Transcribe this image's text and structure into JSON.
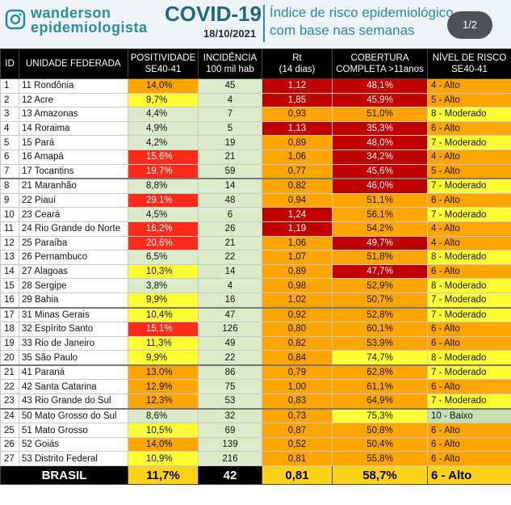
{
  "header": {
    "brand_line1": "wanderson",
    "brand_line2": "epidemiologista",
    "title": "COVID-19",
    "date": "18/10/2021",
    "subtitle_line1": "Índice de risco epidemiológico",
    "subtitle_line2": "com base nas semanas",
    "pager": "1/2",
    "icon": "instagram-icon"
  },
  "colors": {
    "dark_red": "#c00000",
    "red": "#ff2a1a",
    "orange": "#ffa500",
    "yellow": "#ffff33",
    "green": "#c6e0b4",
    "light_green": "#dbeac8",
    "gold": "#ffd21a"
  },
  "table": {
    "headers": {
      "id": "ID",
      "unit": "UNIDADE FEDERADA",
      "pos1": "POSITIVIDADE",
      "pos2": "SE40-41",
      "inc1": "INCIDÊNCIA",
      "inc2": "100 mil hab",
      "rt1": "Rt",
      "rt2": "(14 dias)",
      "cov1": "COBERTURA",
      "cov2": "COMPLETA >11anos",
      "risk1": "NÍVEL DE RISCO",
      "risk2": "SE40-41"
    },
    "rows": [
      {
        "id": "1",
        "unit": "11 Rondônia",
        "pos": "14,0%",
        "inc": "45",
        "rt": "1,12",
        "cov": "48,1%",
        "risk": "4 - Alto"
      },
      {
        "id": "2",
        "unit": "12 Acre",
        "pos": "9,7%",
        "inc": "4",
        "rt": "1,85",
        "cov": "45,9%",
        "risk": "5 - Alto"
      },
      {
        "id": "3",
        "unit": "13 Amazonas",
        "pos": "4,4%",
        "inc": "7",
        "rt": "0,93",
        "cov": "51,0%",
        "risk": "8 - Moderado"
      },
      {
        "id": "4",
        "unit": "14 Roraima",
        "pos": "4,9%",
        "inc": "5",
        "rt": "1,13",
        "cov": "35,3%",
        "risk": "6 - Alto"
      },
      {
        "id": "5",
        "unit": "15 Pará",
        "pos": "4,2%",
        "inc": "19",
        "rt": "0,89",
        "cov": "48,0%",
        "risk": "7 - Moderado"
      },
      {
        "id": "6",
        "unit": "16 Amapá",
        "pos": "15,6%",
        "inc": "21",
        "rt": "1,06",
        "cov": "34,2%",
        "risk": "4 - Alto"
      },
      {
        "id": "7",
        "unit": "17 Tocantins",
        "pos": "19,7%",
        "inc": "59",
        "rt": "0,77",
        "cov": "45,6%",
        "risk": "5 - Alto"
      },
      {
        "id": "8",
        "unit": "21 Maranhão",
        "pos": "8,8%",
        "inc": "14",
        "rt": "0,82",
        "cov": "46,0%",
        "risk": "7 - Moderado"
      },
      {
        "id": "9",
        "unit": "22 Piauí",
        "pos": "29,1%",
        "inc": "48",
        "rt": "0,94",
        "cov": "51,1%",
        "risk": "6 - Alto"
      },
      {
        "id": "10",
        "unit": "23 Ceará",
        "pos": "4,5%",
        "inc": "6",
        "rt": "1,24",
        "cov": "56,1%",
        "risk": "7 - Moderado"
      },
      {
        "id": "11",
        "unit": "24 Rio Grande do Norte",
        "pos": "16,2%",
        "inc": "26",
        "rt": "1,19",
        "cov": "54,2%",
        "risk": "4 - Alto"
      },
      {
        "id": "12",
        "unit": "25 Paraíba",
        "pos": "20,6%",
        "inc": "21",
        "rt": "1,06",
        "cov": "49,7%",
        "risk": "4 - Alto"
      },
      {
        "id": "13",
        "unit": "26 Pernambuco",
        "pos": "6,5%",
        "inc": "22",
        "rt": "1,07",
        "cov": "51,8%",
        "risk": "8 - Moderado"
      },
      {
        "id": "14",
        "unit": "27 Alagoas",
        "pos": "10,3%",
        "inc": "14",
        "rt": "0,89",
        "cov": "47,7%",
        "risk": "6 - Alto"
      },
      {
        "id": "15",
        "unit": "28 Sergipe",
        "pos": "3,8%",
        "inc": "4",
        "rt": "0,98",
        "cov": "52,9%",
        "risk": "8 - Moderado"
      },
      {
        "id": "16",
        "unit": "29 Bahia",
        "pos": "9,9%",
        "inc": "16",
        "rt": "1,02",
        "cov": "50,7%",
        "risk": "7 - Moderado"
      },
      {
        "id": "17",
        "unit": "31 Minas Gerais",
        "pos": "10,4%",
        "inc": "47",
        "rt": "0,92",
        "cov": "52,8%",
        "risk": "7 - Moderado"
      },
      {
        "id": "18",
        "unit": "32 Espírito Santo",
        "pos": "15,1%",
        "inc": "126",
        "rt": "0,80",
        "cov": "60,1%",
        "risk": "6 - Alto"
      },
      {
        "id": "19",
        "unit": "33 Rio de Janeiro",
        "pos": "11,3%",
        "inc": "49",
        "rt": "0,82",
        "cov": "53,9%",
        "risk": "6 - Alto"
      },
      {
        "id": "20",
        "unit": "35 São Paulo",
        "pos": "9,9%",
        "inc": "22",
        "rt": "0,84",
        "cov": "74,7%",
        "risk": "8 - Moderado"
      },
      {
        "id": "21",
        "unit": "41 Paraná",
        "pos": "13,0%",
        "inc": "86",
        "rt": "0,79",
        "cov": "62,8%",
        "risk": "7 - Moderado"
      },
      {
        "id": "22",
        "unit": "42 Santa Catarina",
        "pos": "12,9%",
        "inc": "75",
        "rt": "1,00",
        "cov": "61,1%",
        "risk": "6 - Alto"
      },
      {
        "id": "23",
        "unit": "43 Rio Grande do Sul",
        "pos": "12,3%",
        "inc": "53",
        "rt": "0,83",
        "cov": "64,9%",
        "risk": "7 - Moderado"
      },
      {
        "id": "24",
        "unit": "50 Mato Grosso do Sul",
        "pos": "8,6%",
        "inc": "32",
        "rt": "0,73",
        "cov": "75,3%",
        "risk": "10 - Baixo"
      },
      {
        "id": "25",
        "unit": "51 Mato Grosso",
        "pos": "10,5%",
        "inc": "69",
        "rt": "0,87",
        "cov": "50,8%",
        "risk": "6 - Alto"
      },
      {
        "id": "26",
        "unit": "52 Goiás",
        "pos": "14,0%",
        "inc": "139",
        "rt": "0,52",
        "cov": "50,4%",
        "risk": "6 - Alto"
      },
      {
        "id": "27",
        "unit": "53 Distrito Federal",
        "pos": "10,9%",
        "inc": "216",
        "rt": "0,81",
        "cov": "55,8%",
        "risk": "6 - Alto"
      }
    ],
    "total": {
      "unit": "BRASIL",
      "pos": "11,7%",
      "inc": "42",
      "rt": "0,81",
      "cov": "58,7%",
      "risk": "6 - Alto"
    }
  }
}
